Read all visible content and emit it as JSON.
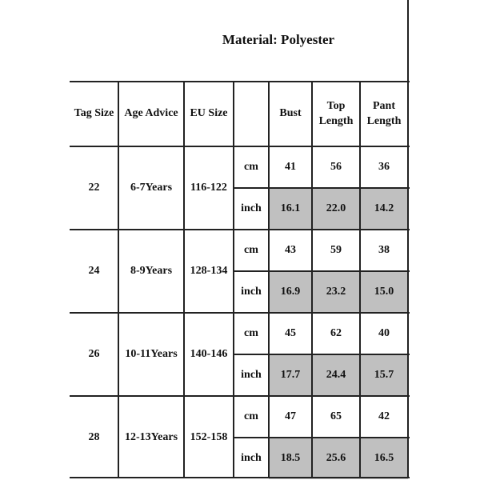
{
  "title": "Material: Polyester",
  "headers": {
    "tag": "Tag Size",
    "age": "Age Advice",
    "eu": "EU Size",
    "unit": "",
    "bust": "Bust",
    "top": "Top Length",
    "pant": "Pant Length"
  },
  "units": {
    "cm": "cm",
    "inch": "inch"
  },
  "rows": [
    {
      "tag": "22",
      "age": "6-7Years",
      "eu": "116-122",
      "cm": [
        "41",
        "56",
        "36"
      ],
      "inch": [
        "16.1",
        "22.0",
        "14.2"
      ]
    },
    {
      "tag": "24",
      "age": "8-9Years",
      "eu": "128-134",
      "cm": [
        "43",
        "59",
        "38"
      ],
      "inch": [
        "16.9",
        "23.2",
        "15.0"
      ]
    },
    {
      "tag": "26",
      "age": "10-11Years",
      "eu": "140-146",
      "cm": [
        "45",
        "62",
        "40"
      ],
      "inch": [
        "17.7",
        "24.4",
        "15.7"
      ]
    },
    {
      "tag": "28",
      "age": "12-13Years",
      "eu": "152-158",
      "cm": [
        "47",
        "65",
        "42"
      ],
      "inch": [
        "18.5",
        "25.6",
        "16.5"
      ]
    }
  ],
  "colors": {
    "inch_fill": "#c0c0c0"
  }
}
